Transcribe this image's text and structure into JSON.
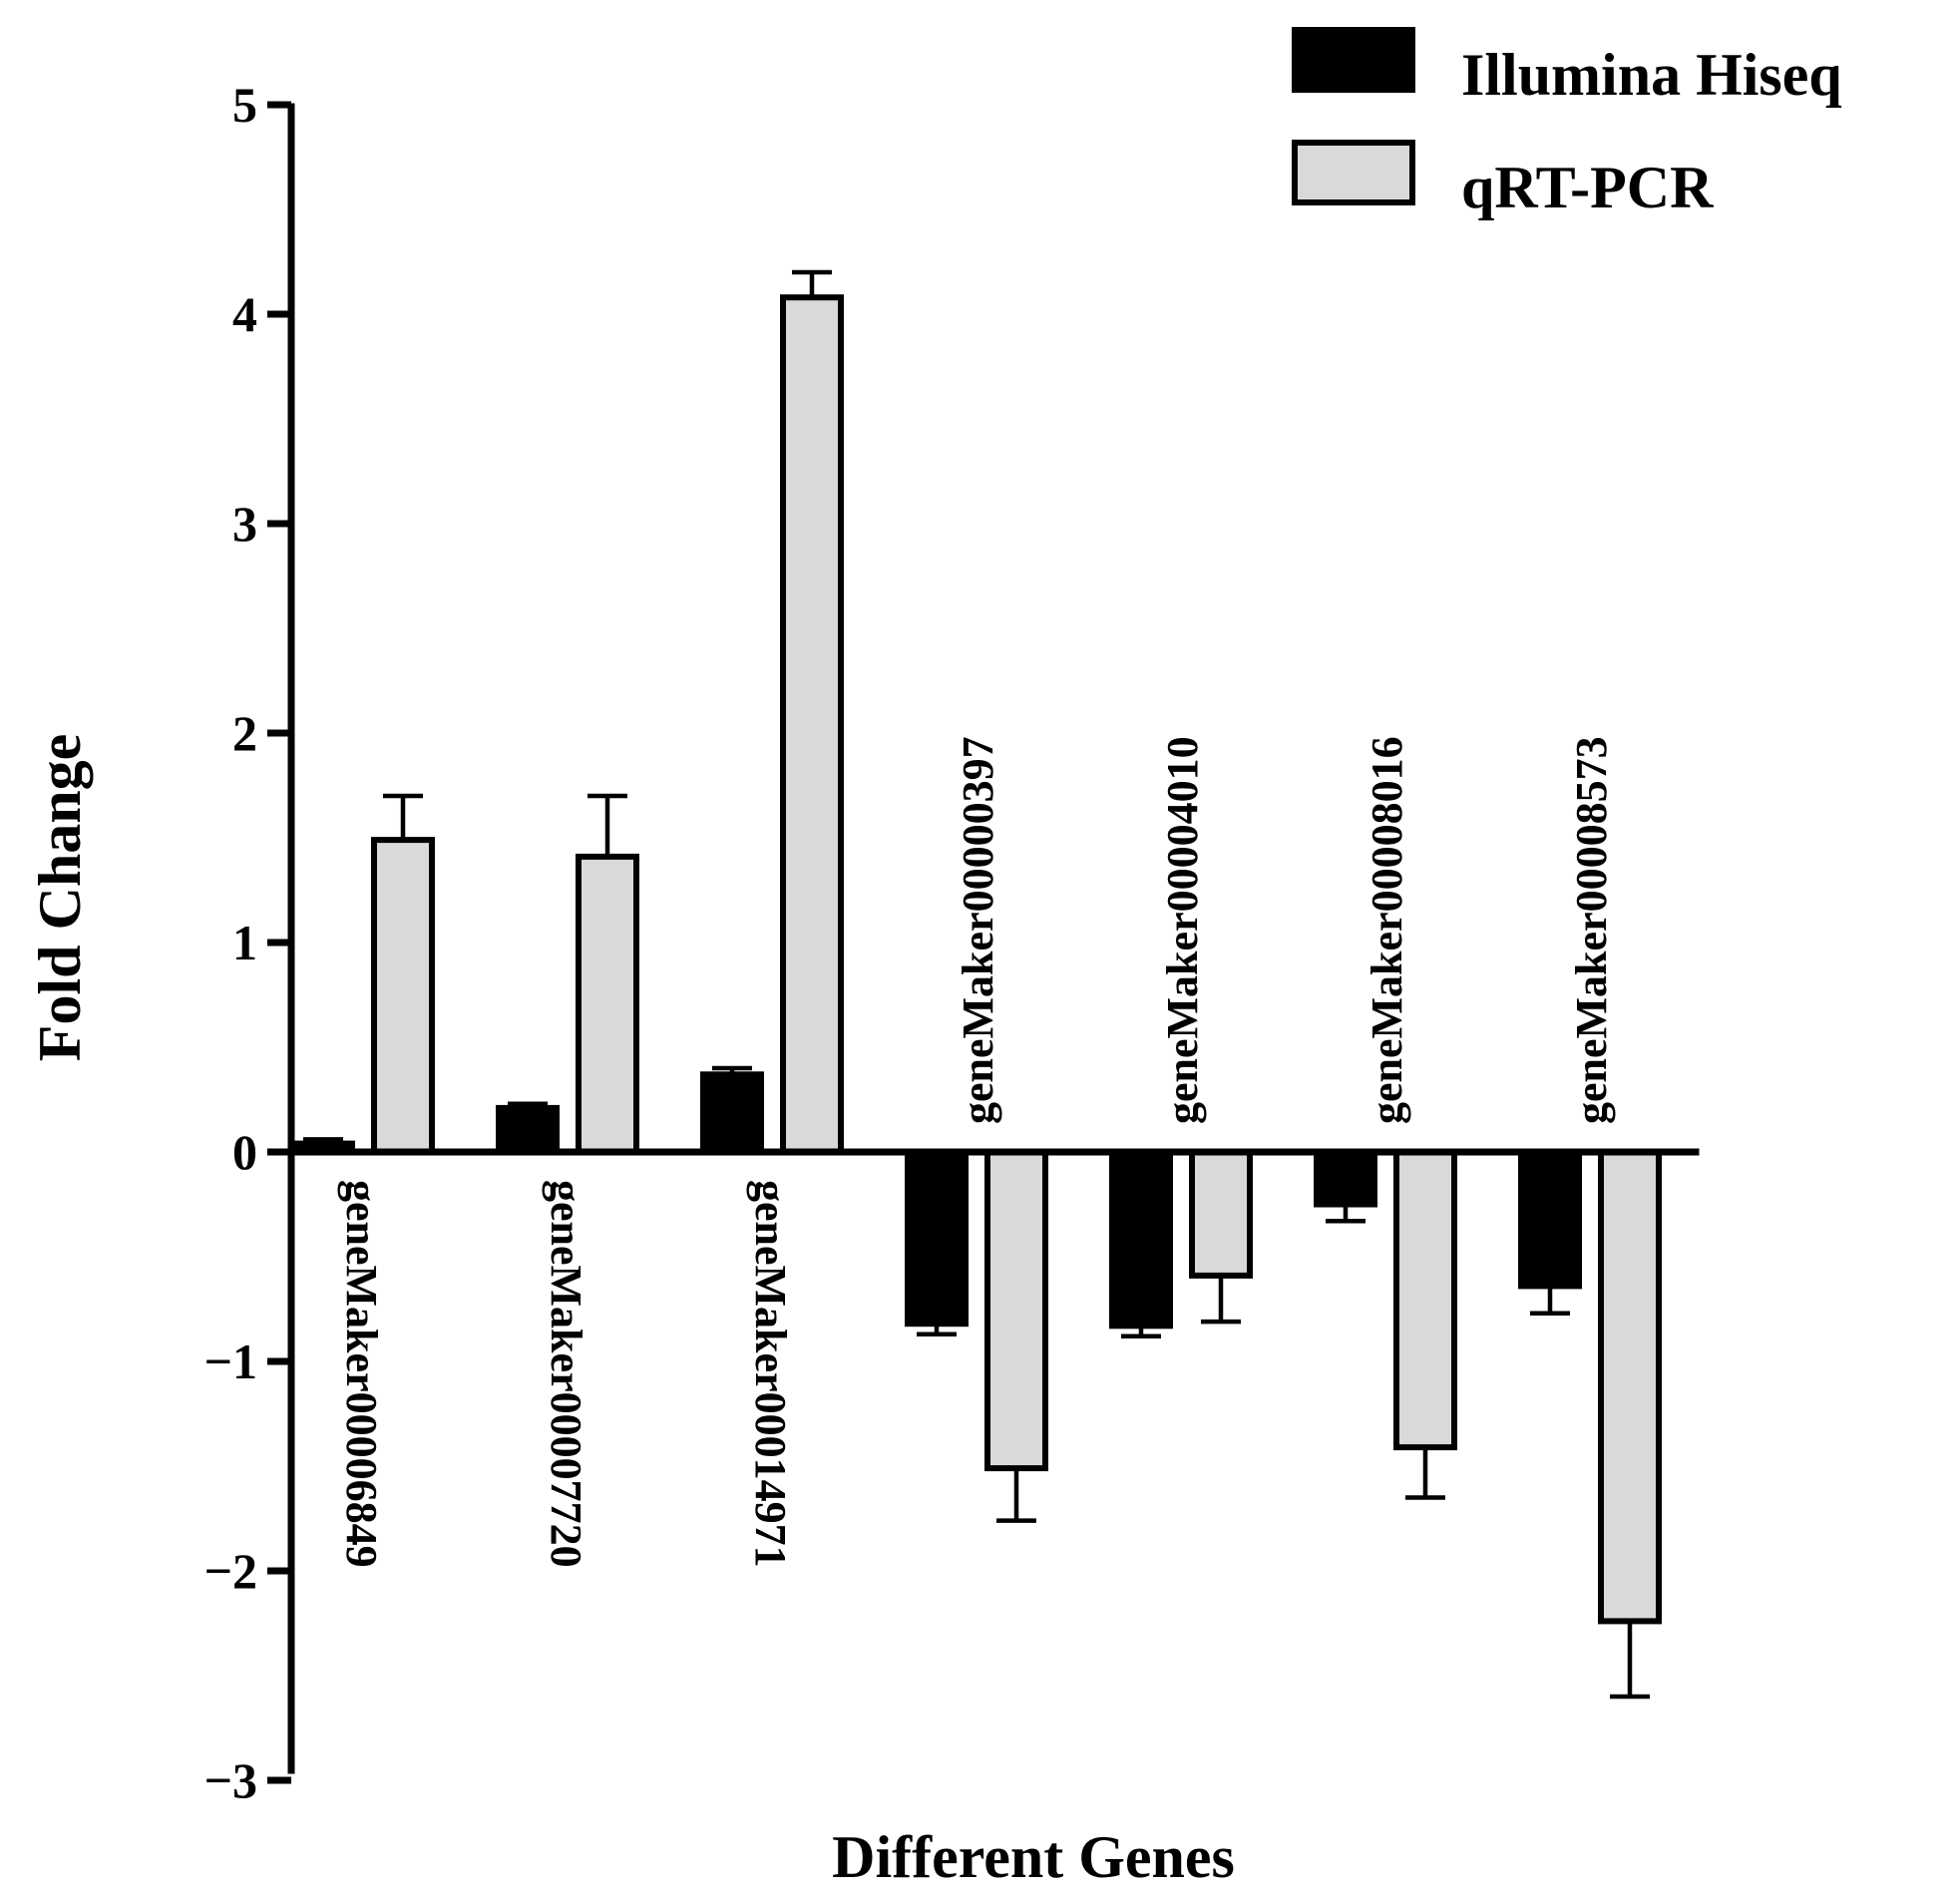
{
  "chart_data": {
    "type": "bar",
    "title": "",
    "xlabel": "Different Genes",
    "ylabel": "Fold Change",
    "ylim": [
      -3,
      5
    ],
    "yticks": [
      -3,
      -2,
      -1,
      0,
      1,
      2,
      3,
      4,
      5
    ],
    "ytick_labels": [
      "−3",
      "−2",
      "−1",
      "0",
      "1",
      "2",
      "3",
      "4",
      "5"
    ],
    "grid": false,
    "legend_position": "top-right",
    "categories": [
      "geneMaker00006849",
      "geneMaker00007720",
      "geneMaker00014971",
      "geneMaker00000397",
      "geneMaker00004010",
      "geneMaker00008016",
      "geneMaker00008573"
    ],
    "series": [
      {
        "name": "Illumina Hiseq",
        "color": "#000000",
        "values": [
          0.04,
          0.21,
          0.37,
          -0.82,
          -0.83,
          -0.25,
          -0.64
        ],
        "errors": [
          0.02,
          0.02,
          0.03,
          0.05,
          0.05,
          0.08,
          0.13
        ]
      },
      {
        "name": "qRT-PCR",
        "color": "#d9d9d9",
        "values": [
          1.49,
          1.41,
          4.08,
          -1.51,
          -0.59,
          -1.41,
          -2.24
        ],
        "errors": [
          0.21,
          0.29,
          0.12,
          0.25,
          0.22,
          0.24,
          0.36
        ]
      }
    ]
  }
}
